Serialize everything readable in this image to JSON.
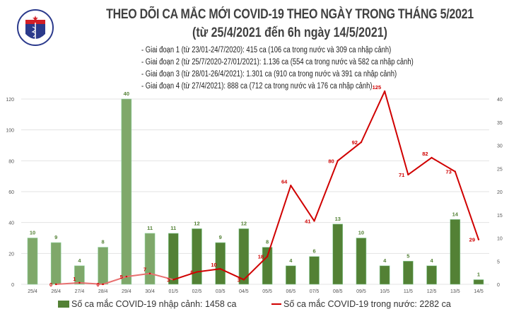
{
  "header": {
    "title": "THEO DÕI CA MẮC MỚI COVID-19 THEO NGÀY TRONG THÁNG 5/2021",
    "subtitle": "(từ 25/4/2021 đến 6h ngày 14/5/2021)",
    "notes": [
      "- Giai đoạn 1 (từ 23/01-24/7/2020): 415 ca (106 ca trong nước và 309 ca nhập cảnh)",
      "- Giai đoạn 2 (từ 25/7/2020-27/01/2021): 1.136 ca (554 ca trong nước và 582 ca nhập cảnh)",
      "- Giai đoạn 3 (từ 28/01-26/4/2021): 1.301 ca (910 ca trong nước và 391 ca nhập cảnh)",
      "- Giai đoạn 4 (từ 27/4/2021): 888 ca (712 ca trong nước và 176 ca nhập cảnh)"
    ],
    "logo_text": "BỘ Y TẾ MINISTRY OF HEALTH"
  },
  "chart_data": {
    "type": "bar+line",
    "categories": [
      "25/4",
      "26/4",
      "27/4",
      "28/4",
      "29/4",
      "30/4",
      "01/5",
      "02/5",
      "03/5",
      "04/5",
      "05/5",
      "06/5",
      "07/5",
      "08/5",
      "09/5",
      "10/5",
      "11/5",
      "12/5",
      "13/5",
      "14/5"
    ],
    "series": [
      {
        "name": "Số ca mắc COVID-19 nhập cảnh: 1458 ca",
        "type": "bar",
        "axis": "right",
        "values": [
          10,
          9,
          4,
          8,
          40,
          11,
          11,
          12,
          9,
          12,
          8,
          4,
          6,
          13,
          10,
          4,
          5,
          4,
          14,
          1
        ],
        "color": "#538135",
        "color_early": "#7fa86a"
      },
      {
        "name": "Số ca mắc COVID-19 trong nước: 2282 ca",
        "type": "line",
        "axis": "left",
        "values": [
          null,
          0,
          1,
          0,
          5,
          7,
          3,
          8,
          10,
          3,
          18,
          64,
          41,
          80,
          92,
          125,
          71,
          82,
          73,
          29
        ],
        "color": "#d00000",
        "color_early": "#e87070"
      }
    ],
    "y_left": {
      "range": [
        0,
        120
      ],
      "ticks": [
        0,
        20,
        40,
        60,
        80,
        100,
        120
      ]
    },
    "y_right": {
      "range": [
        0,
        40
      ],
      "ticks": [
        0,
        5,
        10,
        15,
        20,
        25,
        30,
        35,
        40
      ]
    },
    "grid": true,
    "legend": "bottom"
  }
}
